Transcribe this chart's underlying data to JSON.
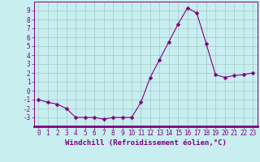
{
  "x": [
    0,
    1,
    2,
    3,
    4,
    5,
    6,
    7,
    8,
    9,
    10,
    11,
    12,
    13,
    14,
    15,
    16,
    17,
    18,
    19,
    20,
    21,
    22,
    23
  ],
  "y": [
    -1,
    -1.3,
    -1.5,
    -2,
    -3,
    -3,
    -3,
    -3.2,
    -3,
    -3,
    -3,
    -1.3,
    1.5,
    3.5,
    5.5,
    7.5,
    9.3,
    8.7,
    5.3,
    1.8,
    1.5,
    1.7,
    1.8,
    2.0
  ],
  "line_color": "#800080",
  "marker_color": "#800080",
  "bg_color": "#c8eef0",
  "grid_color": "#a0c8c8",
  "xlabel": "Windchill (Refroidissement éolien,°C)",
  "ylim": [
    -4,
    10
  ],
  "xlim": [
    -0.5,
    23.5
  ],
  "yticks": [
    -3,
    -2,
    -1,
    0,
    1,
    2,
    3,
    4,
    5,
    6,
    7,
    8,
    9
  ],
  "xticks": [
    0,
    1,
    2,
    3,
    4,
    5,
    6,
    7,
    8,
    9,
    10,
    11,
    12,
    13,
    14,
    15,
    16,
    17,
    18,
    19,
    20,
    21,
    22,
    23
  ],
  "tick_fontsize": 5.5,
  "xlabel_fontsize": 6.5,
  "marker_size": 2.5,
  "line_width": 0.8,
  "spine_color": "#800080",
  "bottom_spine_lw": 2.0
}
